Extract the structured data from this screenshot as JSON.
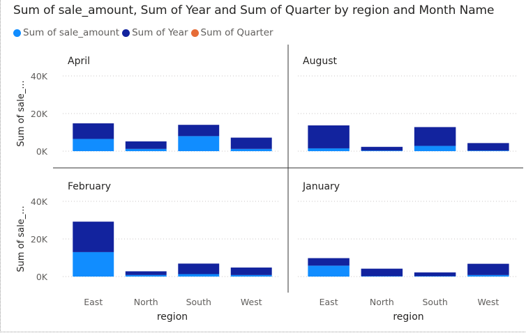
{
  "title": "Sum of sale_amount, Sum of Year and Sum of Quarter by region and Month Name",
  "colors": {
    "sale_amount": "#118dff",
    "year": "#12239e",
    "quarter": "#e66c37",
    "axis_text": "#605e5c",
    "gridline": "#c8c6c4",
    "divider": "#333333"
  },
  "legend": [
    {
      "label": "Sum of sale_amount",
      "color": "#118dff"
    },
    {
      "label": "Sum of Year",
      "color": "#12239e"
    },
    {
      "label": "Sum of Quarter",
      "color": "#e66c37"
    }
  ],
  "chart_data": {
    "type": "bar",
    "stacked": true,
    "small_multiples_by": "Month Name",
    "xlabel": "region",
    "ylabel": "Sum of sale_...",
    "ylim": [
      0,
      40000
    ],
    "yticks": [
      0,
      20000,
      40000
    ],
    "ytick_labels": [
      "0K",
      "20K",
      "40K"
    ],
    "grid": true,
    "legend_position": "top-left",
    "categories": [
      "East",
      "North",
      "South",
      "West"
    ],
    "panels": [
      {
        "title": "April",
        "series": [
          {
            "name": "Sum of sale_amount",
            "values": [
              6500,
              1200,
              8000,
              1200
            ]
          },
          {
            "name": "Sum of Year",
            "values": [
              8300,
              4000,
              6000,
              6000
            ]
          },
          {
            "name": "Sum of Quarter",
            "values": [
              8,
              4,
              6,
              6
            ]
          }
        ]
      },
      {
        "title": "August",
        "series": [
          {
            "name": "Sum of sale_amount",
            "values": [
              1500,
              300,
              2800,
              300
            ]
          },
          {
            "name": "Sum of Year",
            "values": [
              12200,
              2000,
              10000,
              4000
            ]
          },
          {
            "name": "Sum of Quarter",
            "values": [
              18,
              3,
              15,
              6
            ]
          }
        ]
      },
      {
        "title": "February",
        "series": [
          {
            "name": "Sum of sale_amount",
            "values": [
              13000,
              800,
              1300,
              800
            ]
          },
          {
            "name": "Sum of Year",
            "values": [
              16200,
              2000,
              5600,
              4000
            ]
          },
          {
            "name": "Sum of Quarter",
            "values": [
              8,
              1,
              3,
              2
            ]
          }
        ]
      },
      {
        "title": "January",
        "series": [
          {
            "name": "Sum of sale_amount",
            "values": [
              5800,
              200,
              200,
              800
            ]
          },
          {
            "name": "Sum of Year",
            "values": [
              4000,
              4000,
              2000,
              6000
            ]
          },
          {
            "name": "Sum of Quarter",
            "values": [
              2,
              2,
              1,
              3
            ]
          }
        ]
      }
    ]
  }
}
